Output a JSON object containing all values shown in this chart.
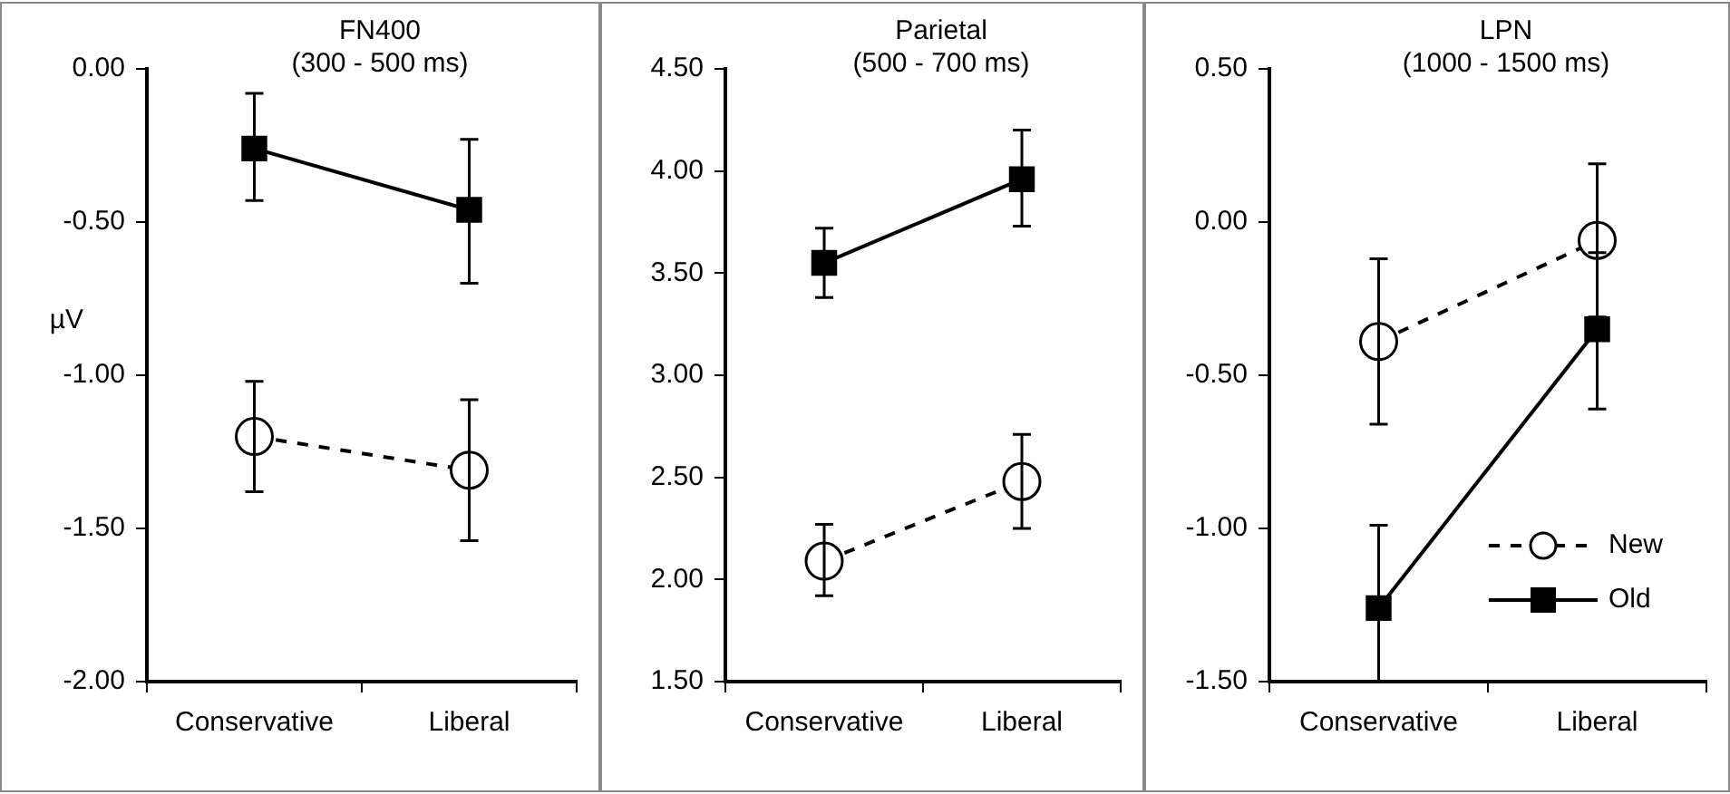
{
  "chart_data": [
    {
      "type": "line",
      "title": "FN400",
      "subtitle": "(300 - 500 ms)",
      "ylabel": "µV",
      "categories": [
        "Conservative",
        "Liberal"
      ],
      "ylim": [
        -2,
        0
      ],
      "yticks": [
        {
          "value": 0,
          "label": "0.00"
        },
        {
          "value": -0.5,
          "label": "-0.50"
        },
        {
          "value": -1,
          "label": "-1.00"
        },
        {
          "value": -1.5,
          "label": "-1.50"
        },
        {
          "value": -2,
          "label": "-2.00"
        }
      ],
      "grid": false,
      "legend": false,
      "series": [
        {
          "color": "#000000",
          "marker": "circle",
          "line_style": "dashed",
          "values": [
            -1.2,
            -1.31
          ],
          "errors": [
            [
              -1.38,
              -1.02
            ],
            [
              -1.54,
              -1.08
            ]
          ]
        },
        {
          "color": "#000000",
          "marker": "square",
          "line_style": "solid",
          "values": [
            -0.26,
            -0.46
          ],
          "errors": [
            [
              -0.43,
              -0.08
            ],
            [
              -0.7,
              -0.23
            ]
          ]
        }
      ]
    },
    {
      "type": "line",
      "title": "Parietal",
      "subtitle": "(500 - 700 ms)",
      "categories": [
        "Conservative",
        "Liberal"
      ],
      "ylim": [
        1.5,
        4.5
      ],
      "yticks": [
        {
          "value": 1.5,
          "label": "1.50"
        },
        {
          "value": 2,
          "label": "2.00"
        },
        {
          "value": 2.5,
          "label": "2.50"
        },
        {
          "value": 3,
          "label": "3.00"
        },
        {
          "value": 3.5,
          "label": "3.50"
        },
        {
          "value": 4,
          "label": "4.00"
        },
        {
          "value": 4.5,
          "label": "4.50"
        }
      ],
      "grid": false,
      "legend": false,
      "series": [
        {
          "color": "#000000",
          "marker": "circle",
          "line_style": "dashed",
          "values": [
            2.09,
            2.48
          ],
          "errors": [
            [
              1.92,
              2.27
            ],
            [
              2.25,
              2.71
            ]
          ]
        },
        {
          "color": "#000000",
          "marker": "square",
          "line_style": "solid",
          "values": [
            3.55,
            3.96
          ],
          "errors": [
            [
              3.38,
              3.72
            ],
            [
              3.73,
              4.2
            ]
          ]
        }
      ]
    },
    {
      "type": "line",
      "title": "LPN",
      "subtitle": "(1000 - 1500 ms)",
      "categories": [
        "Conservative",
        "Liberal"
      ],
      "ylim": [
        -1.5,
        0.5
      ],
      "yticks": [
        {
          "value": -1.5,
          "label": "-1.50"
        },
        {
          "value": -1,
          "label": "-1.00"
        },
        {
          "value": -0.5,
          "label": "-0.50"
        },
        {
          "value": 0,
          "label": "0.00"
        },
        {
          "value": 0.5,
          "label": "0.50"
        }
      ],
      "grid": false,
      "legend": "bottom right",
      "series": [
        {
          "name": "New",
          "color": "#000000",
          "marker": "circle",
          "line_style": "dashed",
          "values": [
            -0.39,
            -0.06
          ],
          "errors": [
            [
              -0.66,
              -0.12
            ],
            [
              -0.31,
              0.19
            ]
          ]
        },
        {
          "name": "Old",
          "color": "#000000",
          "marker": "square",
          "line_style": "solid",
          "values": [
            -1.26,
            -0.35
          ],
          "errors": [
            [
              -1.5,
              -0.99
            ],
            [
              -0.61,
              -0.1
            ]
          ]
        }
      ]
    }
  ]
}
